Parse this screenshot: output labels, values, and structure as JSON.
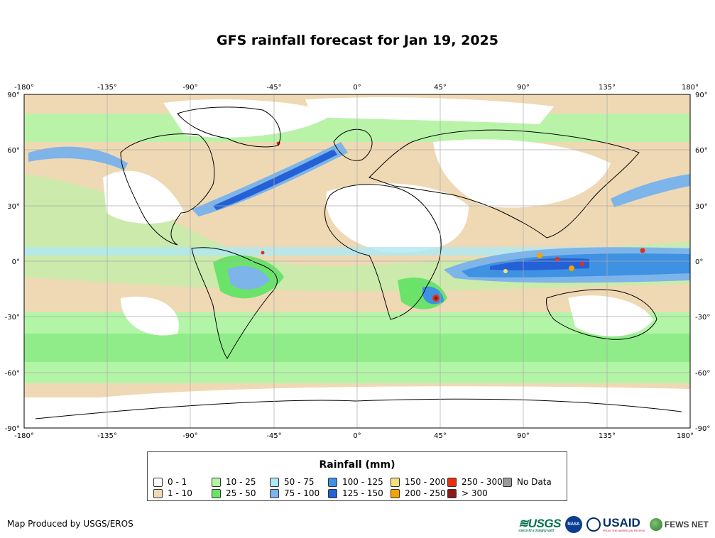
{
  "title": "GFS rainfall forecast for Jan 19, 2025",
  "axes": {
    "lon_ticks": [
      "-180°",
      "-135°",
      "-90°",
      "-45°",
      "0°",
      "45°",
      "90°",
      "135°",
      "180°"
    ],
    "lat_ticks": [
      "90°",
      "60°",
      "30°",
      "0°",
      "-30°",
      "-60°",
      "-90°"
    ]
  },
  "legend": {
    "title": "Rainfall (mm)",
    "items": [
      {
        "label": "0 - 1",
        "color": "#ffffff"
      },
      {
        "label": "1 - 10",
        "color": "#efd9b4"
      },
      {
        "label": "10 - 25",
        "color": "#b3f5a6"
      },
      {
        "label": "25 - 50",
        "color": "#6be36b"
      },
      {
        "label": "50 - 75",
        "color": "#aee8f5"
      },
      {
        "label": "75 - 100",
        "color": "#7db4ea"
      },
      {
        "label": "100 - 125",
        "color": "#3f91e2"
      },
      {
        "label": "125 - 150",
        "color": "#2461d6"
      },
      {
        "label": "150 - 200",
        "color": "#f7e07a"
      },
      {
        "label": "200 - 250",
        "color": "#f5a300"
      },
      {
        "label": "250 - 300",
        "color": "#e63010"
      },
      {
        "label": "> 300",
        "color": "#8b1a1a"
      },
      {
        "label": "No Data",
        "color": "#9a9a9a"
      }
    ]
  },
  "credit": "Map Produced by USGS/EROS",
  "logos": {
    "usgs": "≋USGS",
    "usgs_tagline": "science for a changing world",
    "nasa": "NASA",
    "usaid": "USAID",
    "usaid_tagline": "FROM THE AMERICAN PEOPLE",
    "fews": "FEWS NET"
  }
}
